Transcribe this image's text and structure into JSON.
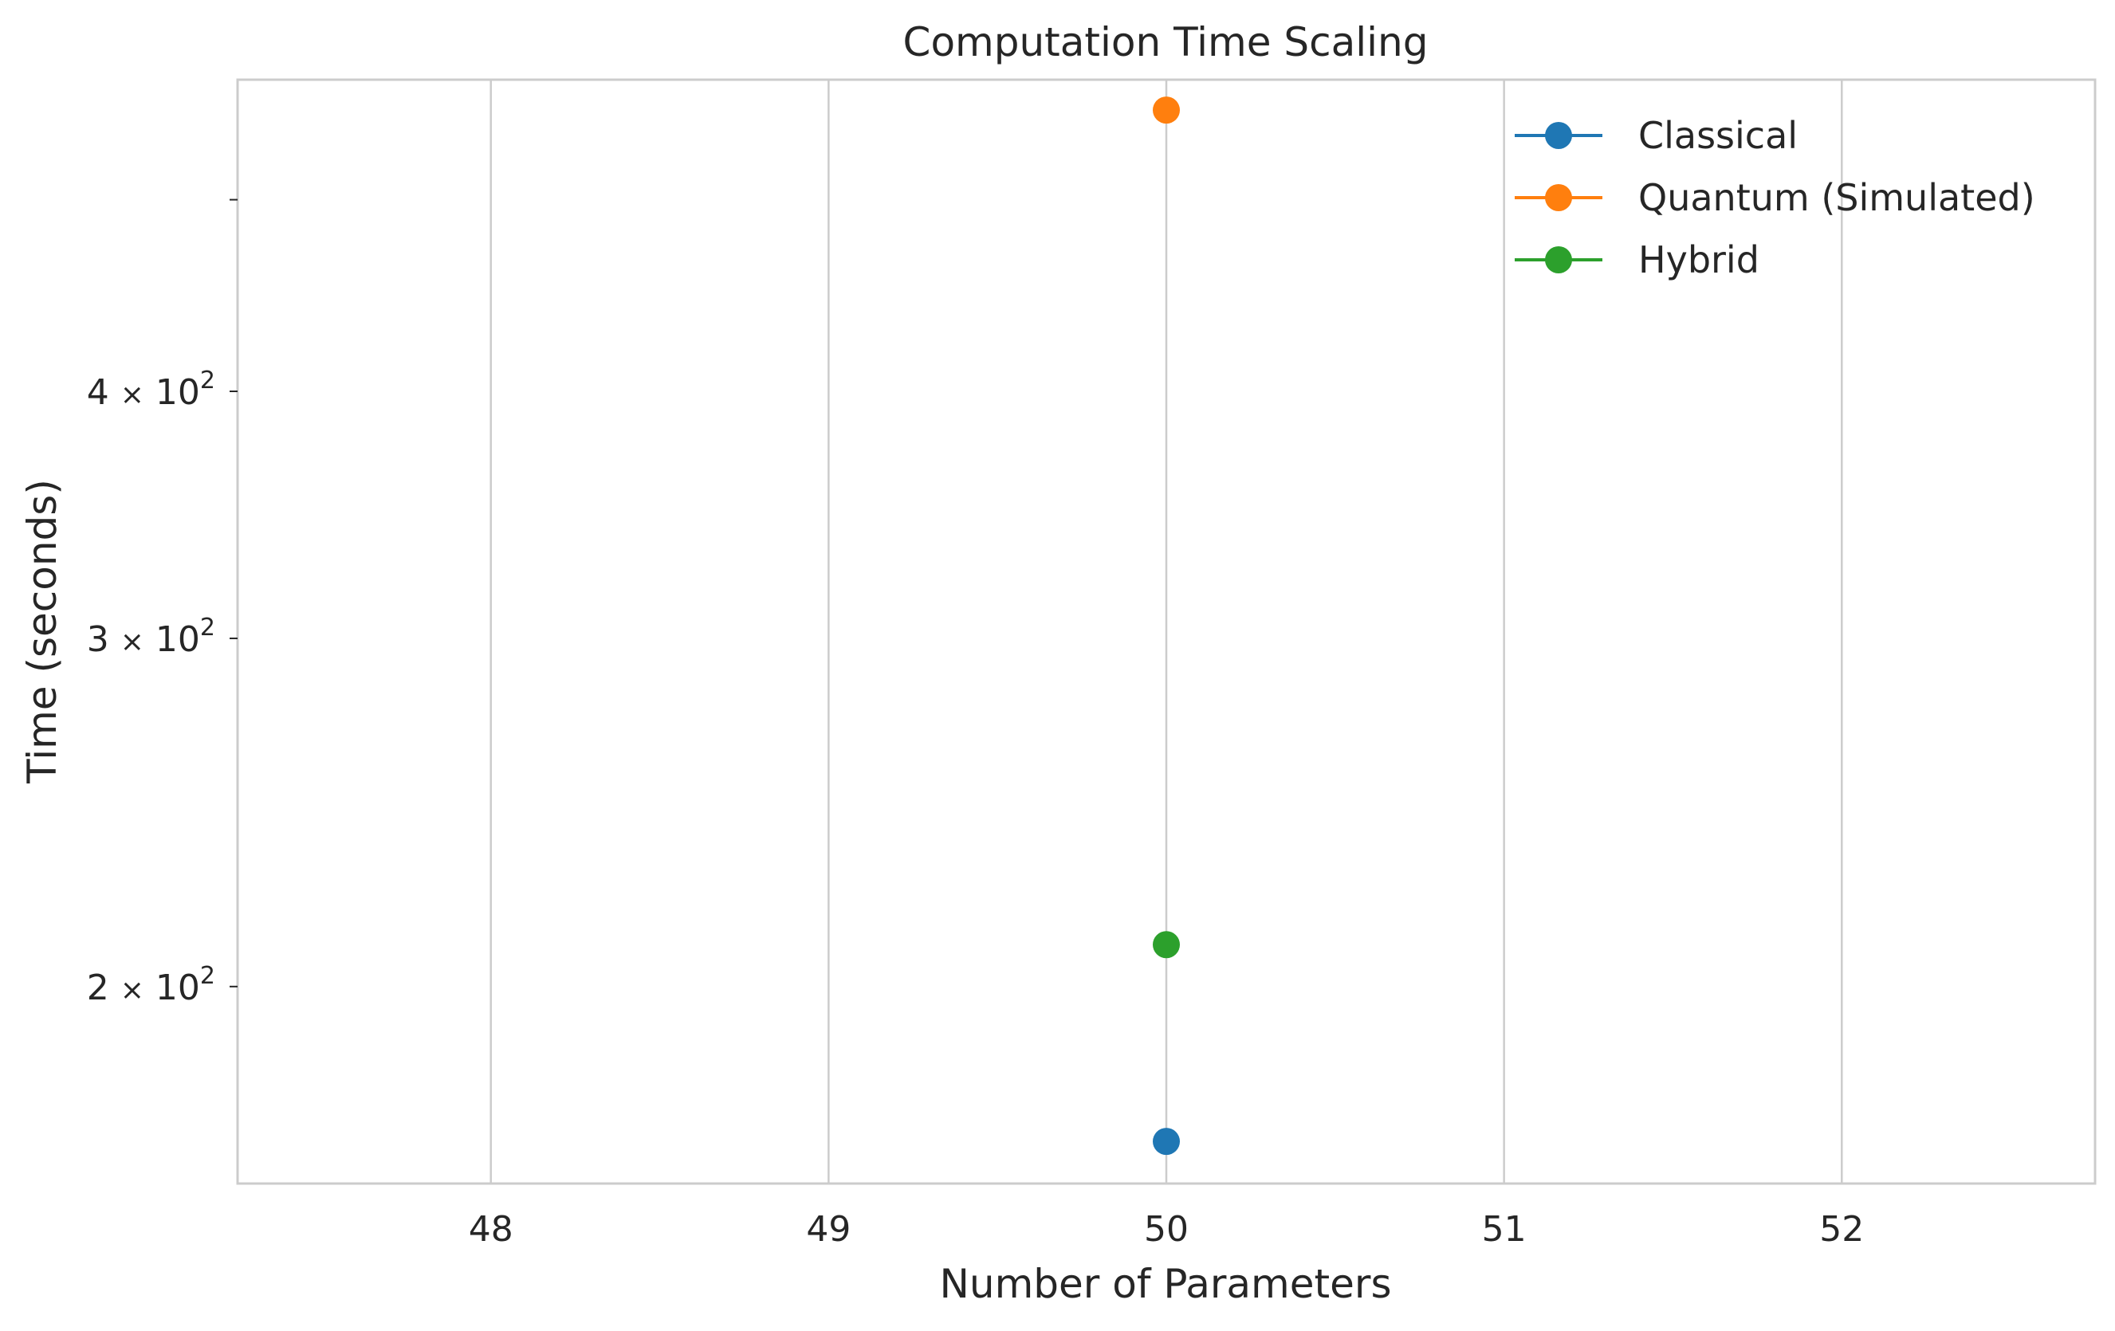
{
  "chart_data": {
    "type": "line",
    "title": "Computation Time Scaling",
    "xlabel": "Number of Parameters",
    "ylabel": "Time (seconds)",
    "yscale": "log",
    "xlim": [
      47.25,
      52.75
    ],
    "ylim": [
      159,
      575
    ],
    "x_ticks": [
      48,
      49,
      50,
      51,
      52
    ],
    "x_tick_labels": [
      "48",
      "49",
      "50",
      "51",
      "52"
    ],
    "y_ticks": [
      200,
      300,
      400,
      500
    ],
    "y_tick_labels": [
      {
        "mantissa": "2",
        "times": "×",
        "base": "10",
        "exp": "2"
      },
      {
        "mantissa": "3",
        "times": "×",
        "base": "10",
        "exp": "2"
      },
      {
        "mantissa": "4",
        "times": "×",
        "base": "10",
        "exp": "2"
      },
      {
        "mantissa": "",
        "times": "",
        "base": "",
        "exp": ""
      }
    ],
    "grid": "x",
    "legend_position": "top-right",
    "series": [
      {
        "name": "Classical",
        "color": "#1f77b4",
        "x": [
          50
        ],
        "y": [
          167
        ]
      },
      {
        "name": "Quantum (Simulated)",
        "color": "#ff7f0e",
        "x": [
          50
        ],
        "y": [
          555
        ]
      },
      {
        "name": "Hybrid",
        "color": "#2ca02c",
        "x": [
          50
        ],
        "y": [
          210
        ]
      }
    ]
  }
}
